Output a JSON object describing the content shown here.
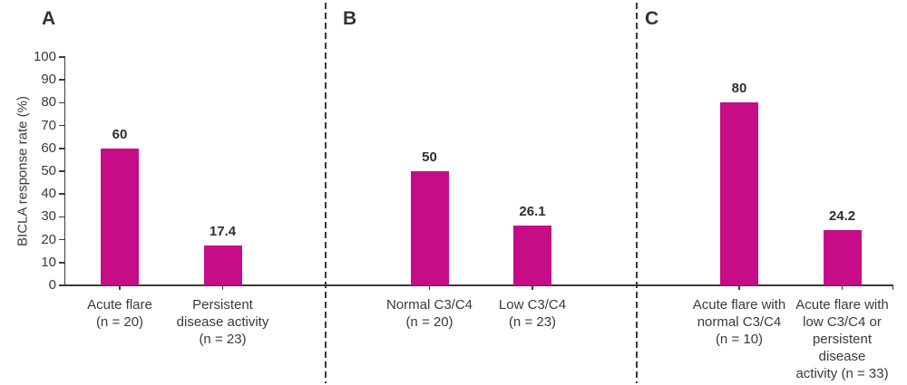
{
  "figure": {
    "background": "#ffffff"
  },
  "colors": {
    "bar": "#C60C86",
    "axis": "#3a3a3a",
    "text": "#3a3a3a",
    "value_text": "#2e2e2e",
    "separator": "#3a3a3a"
  },
  "chart_data": {
    "type": "bar",
    "ylabel": "BICLA response rate (%)",
    "ylim": [
      0,
      100
    ],
    "yticks": [
      0,
      10,
      20,
      30,
      40,
      50,
      60,
      70,
      80,
      90,
      100
    ],
    "grid": false,
    "legend": "none",
    "bar_color": "#C60C86",
    "panels": [
      {
        "label": "A",
        "bars": [
          {
            "category_lines": [
              "Acute flare",
              "(n = 20)"
            ],
            "value": 60,
            "value_label": "60"
          },
          {
            "category_lines": [
              "Persistent",
              "disease activity",
              "(n = 23)"
            ],
            "value": 17.4,
            "value_label": "17.4"
          }
        ]
      },
      {
        "label": "B",
        "bars": [
          {
            "category_lines": [
              "Normal C3/C4",
              "(n = 20)"
            ],
            "value": 50,
            "value_label": "50"
          },
          {
            "category_lines": [
              "Low C3/C4",
              "(n = 23)"
            ],
            "value": 26.1,
            "value_label": "26.1"
          }
        ]
      },
      {
        "label": "C",
        "bars": [
          {
            "category_lines": [
              "Acute flare with",
              "normal C3/C4",
              "(n = 10)"
            ],
            "value": 80,
            "value_label": "80"
          },
          {
            "category_lines": [
              "Acute flare with",
              "low C3/C4 or",
              "persistent",
              "disease",
              "activity (n = 33)"
            ],
            "value": 24.2,
            "value_label": "24.2"
          }
        ]
      }
    ]
  }
}
